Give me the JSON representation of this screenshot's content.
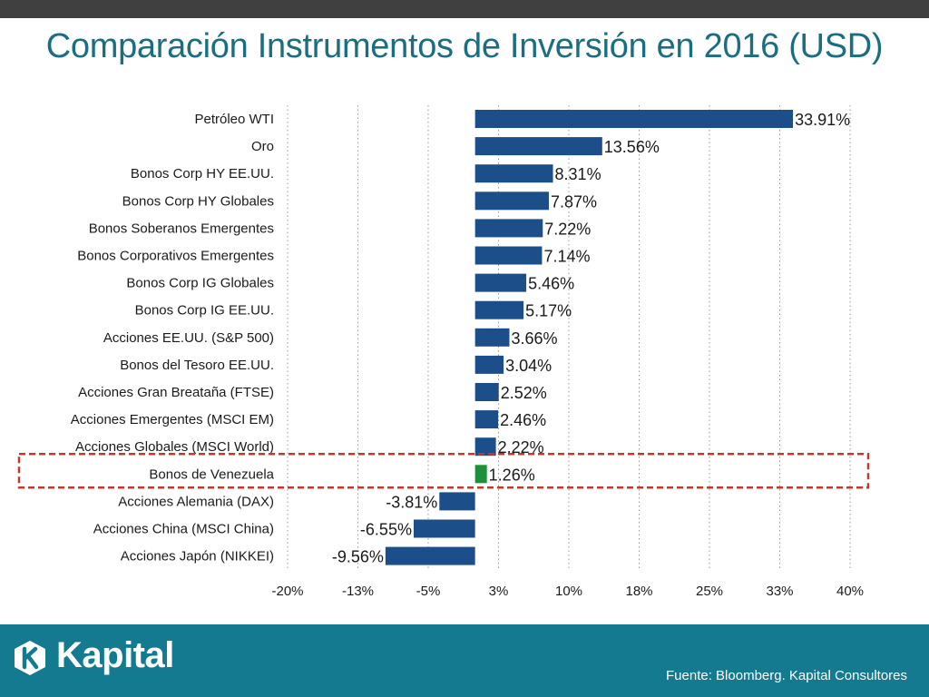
{
  "title": "Comparación Instrumentos de Inversión en 2016 (USD)",
  "footer": {
    "brand": "Kapital",
    "source": "Fuente: Bloomberg. Kapital Consultores"
  },
  "colors": {
    "bar": "#1c4f8a",
    "highlight_bar": "#1e8f3a",
    "highlight_box": "#c0392b",
    "title": "#1a6e82",
    "footer": "#137a90"
  },
  "chart_data": {
    "type": "bar",
    "orientation": "horizontal",
    "title": "Comparación Instrumentos de Inversión en 2016 (USD)",
    "categories": [
      "Petróleo WTI",
      "Oro",
      "Bonos Corp HY EE.UU.",
      "Bonos Corp HY Globales",
      "Bonos Soberanos Emergentes",
      "Bonos Corporativos Emergentes",
      "Bonos Corp IG Globales",
      "Bonos Corp IG EE.UU.",
      "Acciones EE.UU. (S&P 500)",
      "Bonos del Tesoro EE.UU.",
      "Acciones Gran Breataña (FTSE)",
      "Acciones Emergentes (MSCI EM)",
      "Acciones Globales (MSCI World)",
      "Bonos de Venezuela",
      "Acciones Alemania (DAX)",
      "Acciones China (MSCI China)",
      "Acciones Japón (NIKKEI)"
    ],
    "values": [
      33.91,
      13.56,
      8.31,
      7.87,
      7.22,
      7.14,
      5.46,
      5.17,
      3.66,
      3.04,
      2.52,
      2.46,
      2.22,
      1.26,
      -3.81,
      -6.55,
      -9.56
    ],
    "value_labels": [
      "33.91%",
      "13.56%",
      "8.31%",
      "7.87%",
      "7.22%",
      "7.14%",
      "5.46%",
      "5.17%",
      "3.66%",
      "3.04%",
      "2.52%",
      "2.46%",
      "2.22%",
      "1.26%",
      "-3.81%",
      "-6.55%",
      "-9.56%"
    ],
    "highlight": "Bonos de Venezuela",
    "xlim": [
      -20,
      40
    ],
    "ticks": [
      -20,
      -12.5,
      -5,
      2.5,
      10,
      17.5,
      25,
      32.5,
      40
    ],
    "tick_labels": [
      "-20%",
      "-13%",
      "-5%",
      "3%",
      "10%",
      "18%",
      "25%",
      "33%",
      "40%"
    ],
    "grid": "vertical dotted",
    "xlabel": "",
    "ylabel": ""
  }
}
